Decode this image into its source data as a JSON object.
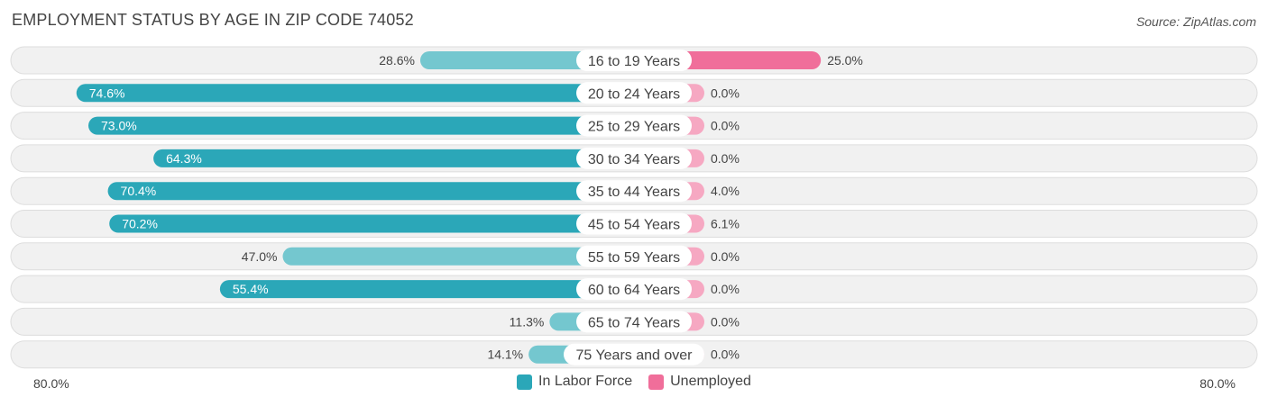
{
  "header": {
    "title": "EMPLOYMENT STATUS BY AGE IN ZIP CODE 74052",
    "source": "Source: ZipAtlas.com"
  },
  "axis": {
    "left_label": "80.0%",
    "right_label": "80.0%"
  },
  "legend": [
    {
      "label": "In Labor Force",
      "color": "#2ba7b8"
    },
    {
      "label": "Unemployed",
      "color": "#f06e9a"
    }
  ],
  "chart_data": {
    "type": "bar",
    "orientation": "horizontal-diverging",
    "title": "EMPLOYMENT STATUS BY AGE IN ZIP CODE 74052",
    "categories": [
      "16 to 19 Years",
      "20 to 24 Years",
      "25 to 29 Years",
      "30 to 34 Years",
      "35 to 44 Years",
      "45 to 54 Years",
      "55 to 59 Years",
      "60 to 64 Years",
      "65 to 74 Years",
      "75 Years and over"
    ],
    "series": [
      {
        "name": "In Labor Force",
        "values": [
          28.6,
          74.6,
          73.0,
          64.3,
          70.4,
          70.2,
          47.0,
          55.4,
          11.3,
          14.1
        ],
        "labels": [
          "28.6%",
          "74.6%",
          "73.0%",
          "64.3%",
          "70.4%",
          "70.2%",
          "47.0%",
          "55.4%",
          "11.3%",
          "14.1%"
        ]
      },
      {
        "name": "Unemployed",
        "values": [
          25.0,
          0.0,
          0.0,
          0.0,
          4.0,
          6.1,
          0.0,
          0.0,
          0.0,
          0.0
        ],
        "labels": [
          "25.0%",
          "0.0%",
          "0.0%",
          "0.0%",
          "4.0%",
          "6.1%",
          "0.0%",
          "0.0%",
          "0.0%",
          "0.0%"
        ]
      }
    ],
    "xlim": [
      -80,
      80
    ],
    "colors": {
      "labor_strong": "#2ba7b8",
      "labor_light": "#74c7cf",
      "unemp_strong": "#f06e9a",
      "unemp_light": "#f6a8c2",
      "row_bg": "#f1f1f1",
      "row_border": "#dddddd"
    }
  }
}
